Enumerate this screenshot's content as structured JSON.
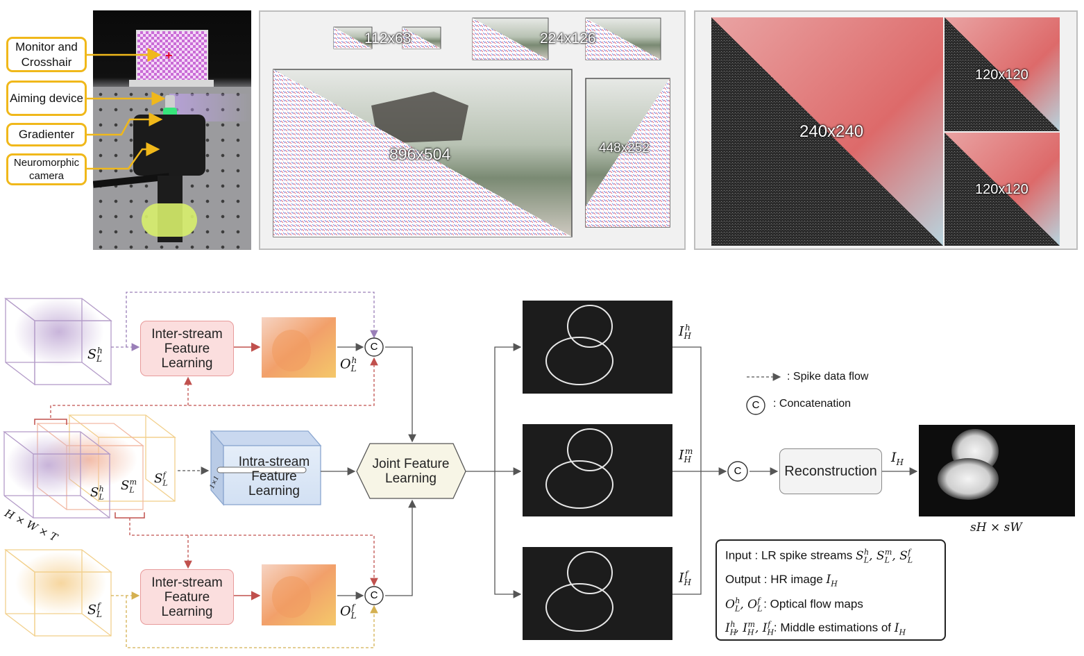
{
  "setup": {
    "callouts": [
      "Monitor and Crosshair",
      "Aiming device",
      "Gradienter",
      "Neuromorphic camera"
    ]
  },
  "resolutions": {
    "r1": "112x63",
    "r2": "224x126",
    "r3": "896x504",
    "r4": "448x252",
    "r5": "240x240",
    "r6": "120x120",
    "r7": "120x120"
  },
  "pipeline": {
    "inter_top": "Inter-stream Feature Learning",
    "inter_bottom": "Inter-stream Feature Learning",
    "intra": "Intra-stream Feature Learning",
    "joint": "Joint Feature Learning",
    "reconstruction": "Reconstruction",
    "concat_symbol": "C",
    "kernel": "1×1",
    "dims_in": "H × W × T",
    "dims_out": "sH × sW"
  },
  "legend": {
    "spike_flow": ": Spike data flow",
    "concatenation": ": Concatenation"
  },
  "key": {
    "input_prefix": "Input : LR spike streams",
    "output_prefix": "Output : HR image",
    "flow_suffix": ": Optical flow maps",
    "middle_suffix": ": Middle estimations of"
  },
  "colors": {
    "callout_border": "#f0b81a",
    "inter_fill": "#fbdede",
    "intra_fill": "#dde8f6",
    "joint_fill": "#f7f5e6",
    "stream_h": "#b39bc8",
    "stream_m": "#f2b9a3",
    "stream_f": "#f2d08c",
    "arrow_red": "#c0504d",
    "arrow_purple": "#9a7fb8",
    "arrow_gold": "#d4b050"
  }
}
